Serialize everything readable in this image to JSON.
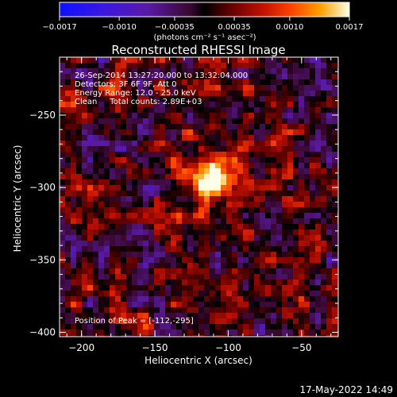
{
  "chart_data": {
    "type": "heatmap",
    "title": "Reconstructed RHESSI Image",
    "xlabel": "Heliocentric X (arcsec)",
    "ylabel": "Heliocentric Y (arcsec)",
    "xlim": [
      -215,
      -25
    ],
    "ylim": [
      -403,
      -210
    ],
    "x_ticks": [
      -200,
      -150,
      -100,
      -50
    ],
    "x_tick_labels": [
      "−200",
      "−150",
      "−100",
      "−50"
    ],
    "y_ticks": [
      -400,
      -350,
      -300,
      -250
    ],
    "y_tick_labels": [
      "−400",
      "−350",
      "−300",
      "−250"
    ],
    "colorbar": {
      "range": [
        -0.0017,
        0.0017
      ],
      "tick_values": [
        -0.0017,
        -0.001,
        -0.00035,
        0.00035,
        0.001,
        0.0017
      ],
      "tick_labels": [
        "−0.0017",
        "−0.0010",
        "−0.00035",
        "0.00035",
        "0.0010",
        "0.0017"
      ],
      "units_label": "(photons cm⁻² s⁻¹ asec⁻²)"
    },
    "annotations": [
      "26-Sep-2014 13:27:20.000 to 13:32:04.000",
      "Detectors: 3F 6F 9F, Att 0",
      "Energy Range: 12.0 - 25.0 keV",
      "Clean     Total counts: 2.89E+03"
    ],
    "peak_label": "Position of Peak = [-112,-295]",
    "peak": {
      "x": -112,
      "y": -295
    },
    "footer_date": "17-May-2022 14:49"
  }
}
